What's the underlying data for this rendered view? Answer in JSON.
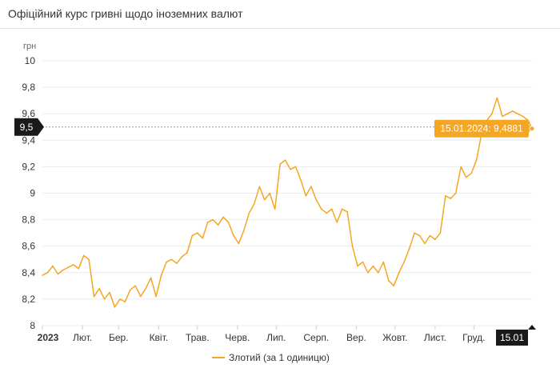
{
  "header": {
    "title": "Офіційний курс гривні щодо іноземних валют"
  },
  "legend": {
    "label": "Злотий (за 1 одиницю)"
  },
  "colors": {
    "line": "#f5a623",
    "grid": "#ebebeb",
    "flag": "#1a1a1a",
    "tooltip": "#f5a623"
  },
  "crosshair": {
    "value": 9.5,
    "label": "9,5"
  },
  "tooltip": {
    "text": "15.01.2024: 9,4881"
  },
  "chart_data": {
    "type": "line",
    "x_start": "2023-01-01",
    "x_end": "2024-01-15",
    "ylabel": "грн",
    "ylim": [
      8,
      10
    ],
    "grid": true,
    "y_ticks": [
      {
        "value": 8,
        "label": "8"
      },
      {
        "value": 8.2,
        "label": "8,2"
      },
      {
        "value": 8.4,
        "label": "8,4"
      },
      {
        "value": 8.6,
        "label": "8,6"
      },
      {
        "value": 8.8,
        "label": "8,8"
      },
      {
        "value": 9,
        "label": "9"
      },
      {
        "value": 9.2,
        "label": "9,2"
      },
      {
        "value": 9.4,
        "label": "9,4"
      },
      {
        "value": 9.6,
        "label": "9,6"
      },
      {
        "value": 9.8,
        "label": "9,8"
      },
      {
        "value": 10,
        "label": "10"
      }
    ],
    "x_ticks": [
      {
        "date": "2023-01-01",
        "label": "2023",
        "bold": true
      },
      {
        "date": "2023-02-01",
        "label": "Лют."
      },
      {
        "date": "2023-03-01",
        "label": "Бер."
      },
      {
        "date": "2023-04-01",
        "label": "Квіт."
      },
      {
        "date": "2023-05-01",
        "label": "Трав."
      },
      {
        "date": "2023-06-01",
        "label": "Черв."
      },
      {
        "date": "2023-07-01",
        "label": "Лип."
      },
      {
        "date": "2023-08-01",
        "label": "Серп."
      },
      {
        "date": "2023-09-01",
        "label": "Вер."
      },
      {
        "date": "2023-10-01",
        "label": "Жовт."
      },
      {
        "date": "2023-11-01",
        "label": "Лист."
      },
      {
        "date": "2023-12-01",
        "label": "Груд."
      }
    ],
    "current": {
      "date": "2024-01-15",
      "label": "15.01",
      "value": 9.4881
    },
    "series": [
      {
        "name": "Злотий (за 1 одиницю)",
        "points": [
          [
            "2023-01-01",
            8.38
          ],
          [
            "2023-01-05",
            8.4
          ],
          [
            "2023-01-09",
            8.45
          ],
          [
            "2023-01-13",
            8.39
          ],
          [
            "2023-01-17",
            8.42
          ],
          [
            "2023-01-21",
            8.44
          ],
          [
            "2023-01-25",
            8.46
          ],
          [
            "2023-01-29",
            8.43
          ],
          [
            "2023-02-02",
            8.53
          ],
          [
            "2023-02-06",
            8.5
          ],
          [
            "2023-02-10",
            8.22
          ],
          [
            "2023-02-14",
            8.28
          ],
          [
            "2023-02-18",
            8.2
          ],
          [
            "2023-02-22",
            8.25
          ],
          [
            "2023-02-26",
            8.14
          ],
          [
            "2023-03-02",
            8.2
          ],
          [
            "2023-03-06",
            8.18
          ],
          [
            "2023-03-10",
            8.27
          ],
          [
            "2023-03-14",
            8.3
          ],
          [
            "2023-03-18",
            8.22
          ],
          [
            "2023-03-22",
            8.28
          ],
          [
            "2023-03-26",
            8.36
          ],
          [
            "2023-03-30",
            8.22
          ],
          [
            "2023-04-03",
            8.38
          ],
          [
            "2023-04-07",
            8.48
          ],
          [
            "2023-04-11",
            8.5
          ],
          [
            "2023-04-15",
            8.47
          ],
          [
            "2023-04-19",
            8.52
          ],
          [
            "2023-04-23",
            8.55
          ],
          [
            "2023-04-27",
            8.68
          ],
          [
            "2023-05-01",
            8.7
          ],
          [
            "2023-05-05",
            8.66
          ],
          [
            "2023-05-09",
            8.78
          ],
          [
            "2023-05-13",
            8.8
          ],
          [
            "2023-05-17",
            8.76
          ],
          [
            "2023-05-21",
            8.82
          ],
          [
            "2023-05-25",
            8.78
          ],
          [
            "2023-05-29",
            8.68
          ],
          [
            "2023-06-02",
            8.62
          ],
          [
            "2023-06-06",
            8.72
          ],
          [
            "2023-06-10",
            8.85
          ],
          [
            "2023-06-14",
            8.92
          ],
          [
            "2023-06-18",
            9.05
          ],
          [
            "2023-06-22",
            8.95
          ],
          [
            "2023-06-26",
            9.0
          ],
          [
            "2023-06-30",
            8.88
          ],
          [
            "2023-07-04",
            9.22
          ],
          [
            "2023-07-08",
            9.25
          ],
          [
            "2023-07-12",
            9.18
          ],
          [
            "2023-07-16",
            9.2
          ],
          [
            "2023-07-20",
            9.1
          ],
          [
            "2023-07-24",
            8.98
          ],
          [
            "2023-07-28",
            9.05
          ],
          [
            "2023-08-01",
            8.95
          ],
          [
            "2023-08-05",
            8.88
          ],
          [
            "2023-08-09",
            8.85
          ],
          [
            "2023-08-13",
            8.88
          ],
          [
            "2023-08-17",
            8.78
          ],
          [
            "2023-08-21",
            8.88
          ],
          [
            "2023-08-25",
            8.86
          ],
          [
            "2023-08-29",
            8.6
          ],
          [
            "2023-09-02",
            8.45
          ],
          [
            "2023-09-06",
            8.48
          ],
          [
            "2023-09-10",
            8.4
          ],
          [
            "2023-09-14",
            8.45
          ],
          [
            "2023-09-18",
            8.4
          ],
          [
            "2023-09-22",
            8.48
          ],
          [
            "2023-09-26",
            8.34
          ],
          [
            "2023-09-30",
            8.3
          ],
          [
            "2023-10-04",
            8.4
          ],
          [
            "2023-10-08",
            8.48
          ],
          [
            "2023-10-12",
            8.58
          ],
          [
            "2023-10-16",
            8.7
          ],
          [
            "2023-10-20",
            8.68
          ],
          [
            "2023-10-24",
            8.62
          ],
          [
            "2023-10-28",
            8.68
          ],
          [
            "2023-11-01",
            8.65
          ],
          [
            "2023-11-05",
            8.7
          ],
          [
            "2023-11-09",
            8.98
          ],
          [
            "2023-11-13",
            8.96
          ],
          [
            "2023-11-17",
            9.0
          ],
          [
            "2023-11-21",
            9.2
          ],
          [
            "2023-11-25",
            9.12
          ],
          [
            "2023-11-29",
            9.15
          ],
          [
            "2023-12-03",
            9.25
          ],
          [
            "2023-12-07",
            9.45
          ],
          [
            "2023-12-11",
            9.55
          ],
          [
            "2023-12-15",
            9.6
          ],
          [
            "2023-12-19",
            9.72
          ],
          [
            "2023-12-23",
            9.58
          ],
          [
            "2023-12-27",
            9.6
          ],
          [
            "2023-12-31",
            9.62
          ],
          [
            "2024-01-04",
            9.6
          ],
          [
            "2024-01-08",
            9.58
          ],
          [
            "2024-01-12",
            9.55
          ],
          [
            "2024-01-15",
            9.4881
          ]
        ]
      }
    ]
  }
}
